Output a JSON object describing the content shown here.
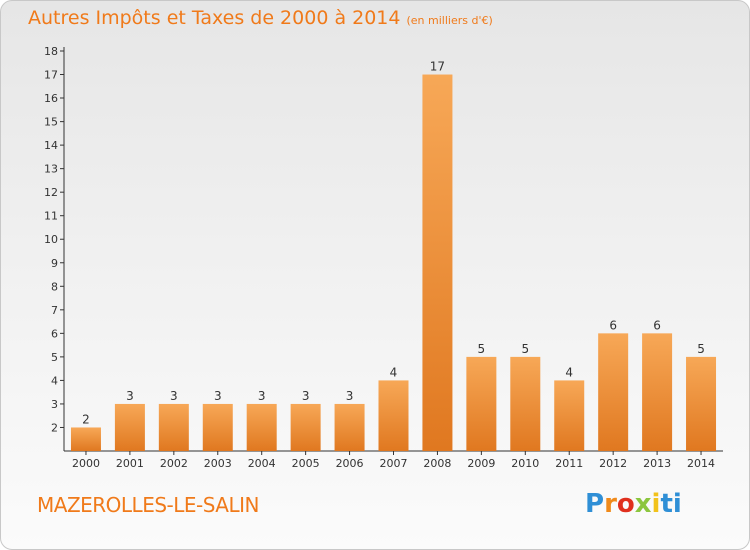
{
  "header": {
    "title": "Autres Impôts et Taxes de 2000 à 2014",
    "subtitle": "(en milliers d'€)"
  },
  "footer": {
    "commune": "MAZEROLLES-LE-SALIN",
    "logo_text": "Proxiti"
  },
  "colors": {
    "accent": "#f07a1a",
    "bar_top": "#f7a857",
    "bar_bottom": "#e07820",
    "axis": "#333333"
  },
  "chart_data": {
    "type": "bar",
    "categories": [
      "2000",
      "2001",
      "2002",
      "2003",
      "2004",
      "2005",
      "2006",
      "2007",
      "2008",
      "2009",
      "2010",
      "2011",
      "2012",
      "2013",
      "2014"
    ],
    "values": [
      2,
      3,
      3,
      3,
      3,
      3,
      3,
      4,
      17,
      5,
      5,
      4,
      6,
      6,
      5
    ],
    "title": "Autres Impôts et Taxes de 2000 à 2014",
    "subtitle": "(en milliers d'€)",
    "xlabel": "",
    "ylabel": "",
    "ylim": [
      1,
      18
    ],
    "yticks": [
      2,
      3,
      4,
      5,
      6,
      7,
      8,
      9,
      10,
      11,
      12,
      13,
      14,
      15,
      16,
      17,
      18
    ],
    "data_labels": true,
    "grid": false
  }
}
